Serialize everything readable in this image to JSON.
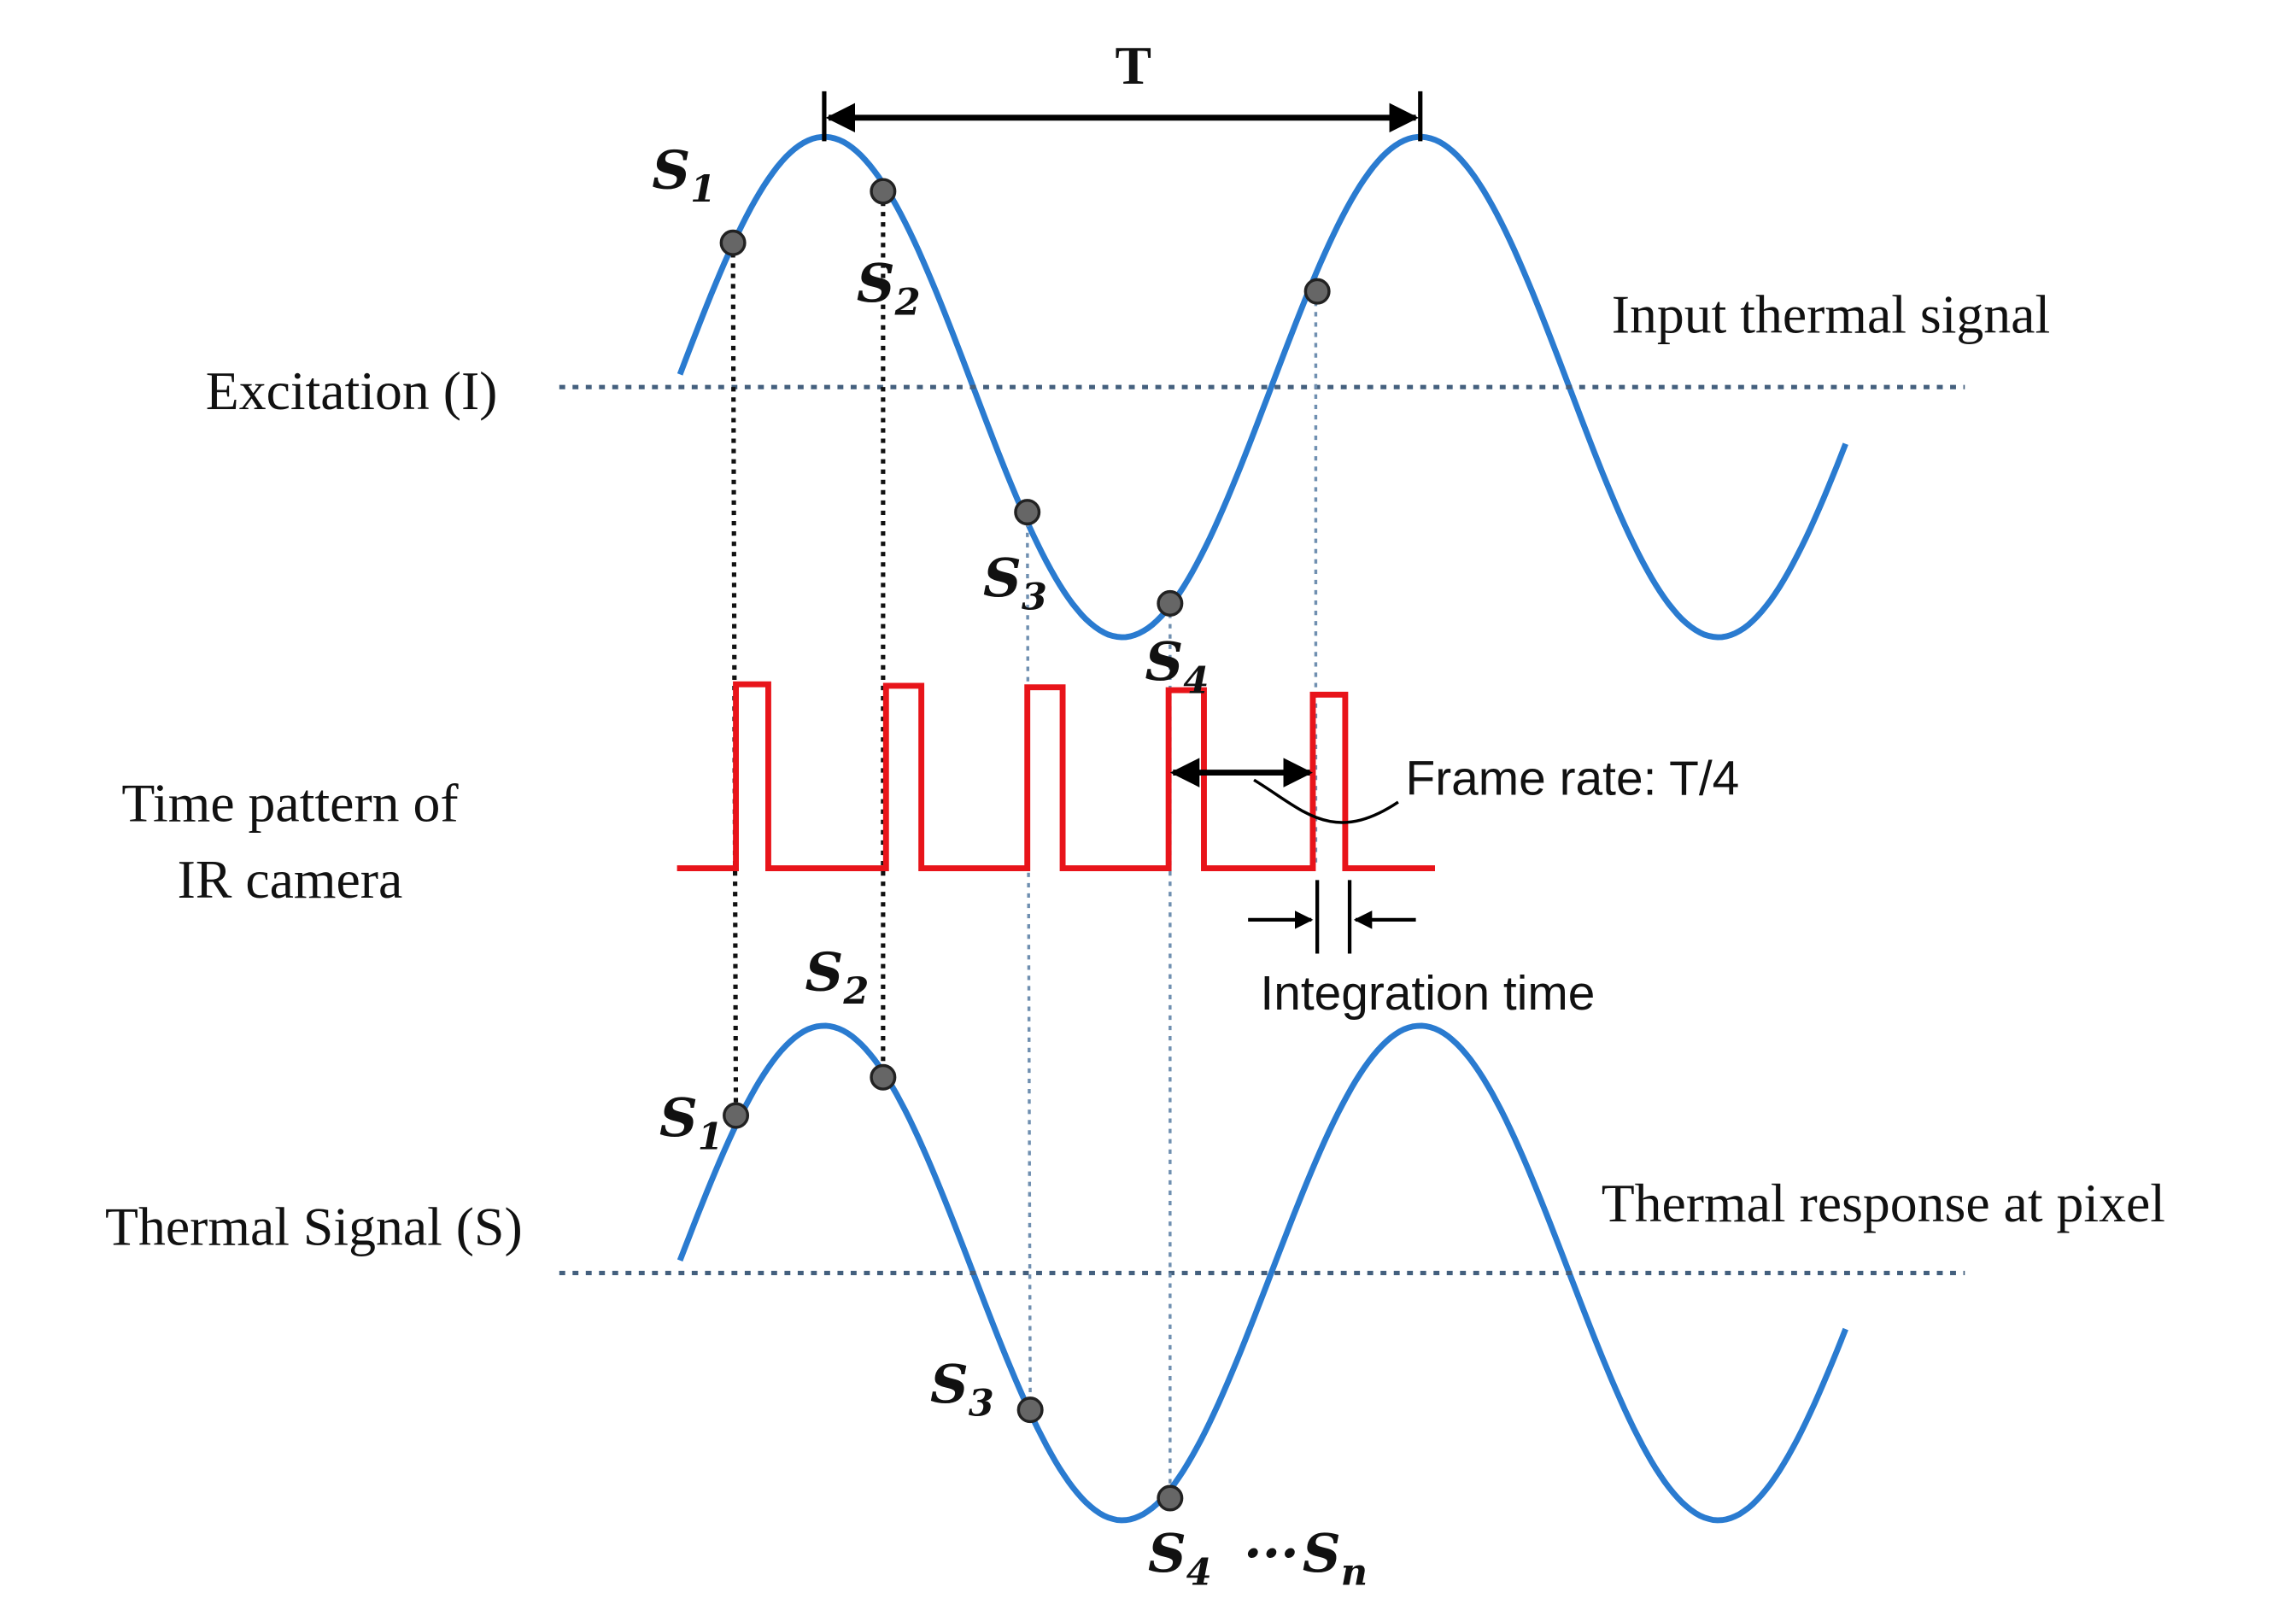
{
  "period_label": "T",
  "left_labels": [
    "Excitation (I)",
    "Time pattern of",
    "IR camera",
    "Thermal Signal (S)"
  ],
  "right_labels": [
    "Input thermal signal",
    "Thermal response at pixel"
  ],
  "annotations": {
    "frame_rate": "Frame rate: T/4",
    "integration_time": "Integration time",
    "ellipsis": "···"
  },
  "samples": {
    "excitation": [
      {
        "symbol": "S",
        "index": "1"
      },
      {
        "symbol": "S",
        "index": "2"
      },
      {
        "symbol": "S",
        "index": "3"
      },
      {
        "symbol": "S",
        "index": "4"
      }
    ],
    "response": [
      {
        "symbol": "S",
        "index": "1"
      },
      {
        "symbol": "S",
        "index": "2"
      },
      {
        "symbol": "S",
        "index": "3"
      },
      {
        "symbol": "S",
        "index": "4"
      },
      {
        "symbol": "S",
        "index": "n"
      }
    ]
  }
}
